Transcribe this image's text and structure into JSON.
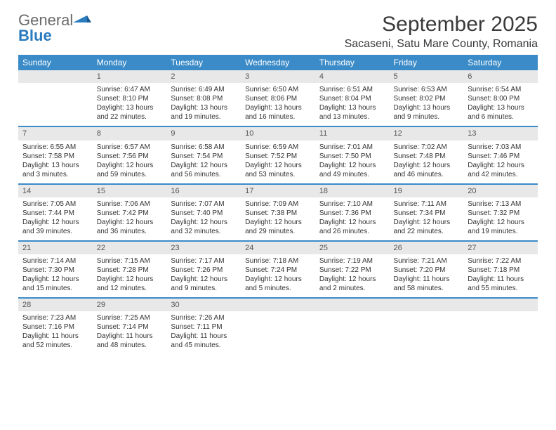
{
  "brand": {
    "general": "General",
    "blue": "Blue"
  },
  "title": "September 2025",
  "location": "Sacaseni, Satu Mare County, Romania",
  "colors": {
    "header_bg": "#3b8bc8",
    "header_text": "#ffffff",
    "daynum_bg": "#e8e8e8",
    "border": "#3b8bc8",
    "text": "#333333",
    "logo_gray": "#6b6b6b",
    "logo_blue": "#2a7bbf"
  },
  "weekdays": [
    "Sunday",
    "Monday",
    "Tuesday",
    "Wednesday",
    "Thursday",
    "Friday",
    "Saturday"
  ],
  "weeks": [
    {
      "nums": [
        "",
        "1",
        "2",
        "3",
        "4",
        "5",
        "6"
      ],
      "cells": [
        null,
        {
          "sr": "Sunrise: 6:47 AM",
          "ss": "Sunset: 8:10 PM",
          "dl1": "Daylight: 13 hours",
          "dl2": "and 22 minutes."
        },
        {
          "sr": "Sunrise: 6:49 AM",
          "ss": "Sunset: 8:08 PM",
          "dl1": "Daylight: 13 hours",
          "dl2": "and 19 minutes."
        },
        {
          "sr": "Sunrise: 6:50 AM",
          "ss": "Sunset: 8:06 PM",
          "dl1": "Daylight: 13 hours",
          "dl2": "and 16 minutes."
        },
        {
          "sr": "Sunrise: 6:51 AM",
          "ss": "Sunset: 8:04 PM",
          "dl1": "Daylight: 13 hours",
          "dl2": "and 13 minutes."
        },
        {
          "sr": "Sunrise: 6:53 AM",
          "ss": "Sunset: 8:02 PM",
          "dl1": "Daylight: 13 hours",
          "dl2": "and 9 minutes."
        },
        {
          "sr": "Sunrise: 6:54 AM",
          "ss": "Sunset: 8:00 PM",
          "dl1": "Daylight: 13 hours",
          "dl2": "and 6 minutes."
        }
      ]
    },
    {
      "nums": [
        "7",
        "8",
        "9",
        "10",
        "11",
        "12",
        "13"
      ],
      "cells": [
        {
          "sr": "Sunrise: 6:55 AM",
          "ss": "Sunset: 7:58 PM",
          "dl1": "Daylight: 13 hours",
          "dl2": "and 3 minutes."
        },
        {
          "sr": "Sunrise: 6:57 AM",
          "ss": "Sunset: 7:56 PM",
          "dl1": "Daylight: 12 hours",
          "dl2": "and 59 minutes."
        },
        {
          "sr": "Sunrise: 6:58 AM",
          "ss": "Sunset: 7:54 PM",
          "dl1": "Daylight: 12 hours",
          "dl2": "and 56 minutes."
        },
        {
          "sr": "Sunrise: 6:59 AM",
          "ss": "Sunset: 7:52 PM",
          "dl1": "Daylight: 12 hours",
          "dl2": "and 53 minutes."
        },
        {
          "sr": "Sunrise: 7:01 AM",
          "ss": "Sunset: 7:50 PM",
          "dl1": "Daylight: 12 hours",
          "dl2": "and 49 minutes."
        },
        {
          "sr": "Sunrise: 7:02 AM",
          "ss": "Sunset: 7:48 PM",
          "dl1": "Daylight: 12 hours",
          "dl2": "and 46 minutes."
        },
        {
          "sr": "Sunrise: 7:03 AM",
          "ss": "Sunset: 7:46 PM",
          "dl1": "Daylight: 12 hours",
          "dl2": "and 42 minutes."
        }
      ]
    },
    {
      "nums": [
        "14",
        "15",
        "16",
        "17",
        "18",
        "19",
        "20"
      ],
      "cells": [
        {
          "sr": "Sunrise: 7:05 AM",
          "ss": "Sunset: 7:44 PM",
          "dl1": "Daylight: 12 hours",
          "dl2": "and 39 minutes."
        },
        {
          "sr": "Sunrise: 7:06 AM",
          "ss": "Sunset: 7:42 PM",
          "dl1": "Daylight: 12 hours",
          "dl2": "and 36 minutes."
        },
        {
          "sr": "Sunrise: 7:07 AM",
          "ss": "Sunset: 7:40 PM",
          "dl1": "Daylight: 12 hours",
          "dl2": "and 32 minutes."
        },
        {
          "sr": "Sunrise: 7:09 AM",
          "ss": "Sunset: 7:38 PM",
          "dl1": "Daylight: 12 hours",
          "dl2": "and 29 minutes."
        },
        {
          "sr": "Sunrise: 7:10 AM",
          "ss": "Sunset: 7:36 PM",
          "dl1": "Daylight: 12 hours",
          "dl2": "and 26 minutes."
        },
        {
          "sr": "Sunrise: 7:11 AM",
          "ss": "Sunset: 7:34 PM",
          "dl1": "Daylight: 12 hours",
          "dl2": "and 22 minutes."
        },
        {
          "sr": "Sunrise: 7:13 AM",
          "ss": "Sunset: 7:32 PM",
          "dl1": "Daylight: 12 hours",
          "dl2": "and 19 minutes."
        }
      ]
    },
    {
      "nums": [
        "21",
        "22",
        "23",
        "24",
        "25",
        "26",
        "27"
      ],
      "cells": [
        {
          "sr": "Sunrise: 7:14 AM",
          "ss": "Sunset: 7:30 PM",
          "dl1": "Daylight: 12 hours",
          "dl2": "and 15 minutes."
        },
        {
          "sr": "Sunrise: 7:15 AM",
          "ss": "Sunset: 7:28 PM",
          "dl1": "Daylight: 12 hours",
          "dl2": "and 12 minutes."
        },
        {
          "sr": "Sunrise: 7:17 AM",
          "ss": "Sunset: 7:26 PM",
          "dl1": "Daylight: 12 hours",
          "dl2": "and 9 minutes."
        },
        {
          "sr": "Sunrise: 7:18 AM",
          "ss": "Sunset: 7:24 PM",
          "dl1": "Daylight: 12 hours",
          "dl2": "and 5 minutes."
        },
        {
          "sr": "Sunrise: 7:19 AM",
          "ss": "Sunset: 7:22 PM",
          "dl1": "Daylight: 12 hours",
          "dl2": "and 2 minutes."
        },
        {
          "sr": "Sunrise: 7:21 AM",
          "ss": "Sunset: 7:20 PM",
          "dl1": "Daylight: 11 hours",
          "dl2": "and 58 minutes."
        },
        {
          "sr": "Sunrise: 7:22 AM",
          "ss": "Sunset: 7:18 PM",
          "dl1": "Daylight: 11 hours",
          "dl2": "and 55 minutes."
        }
      ]
    },
    {
      "nums": [
        "28",
        "29",
        "30",
        "",
        "",
        "",
        ""
      ],
      "cells": [
        {
          "sr": "Sunrise: 7:23 AM",
          "ss": "Sunset: 7:16 PM",
          "dl1": "Daylight: 11 hours",
          "dl2": "and 52 minutes."
        },
        {
          "sr": "Sunrise: 7:25 AM",
          "ss": "Sunset: 7:14 PM",
          "dl1": "Daylight: 11 hours",
          "dl2": "and 48 minutes."
        },
        {
          "sr": "Sunrise: 7:26 AM",
          "ss": "Sunset: 7:11 PM",
          "dl1": "Daylight: 11 hours",
          "dl2": "and 45 minutes."
        },
        null,
        null,
        null,
        null
      ]
    }
  ]
}
